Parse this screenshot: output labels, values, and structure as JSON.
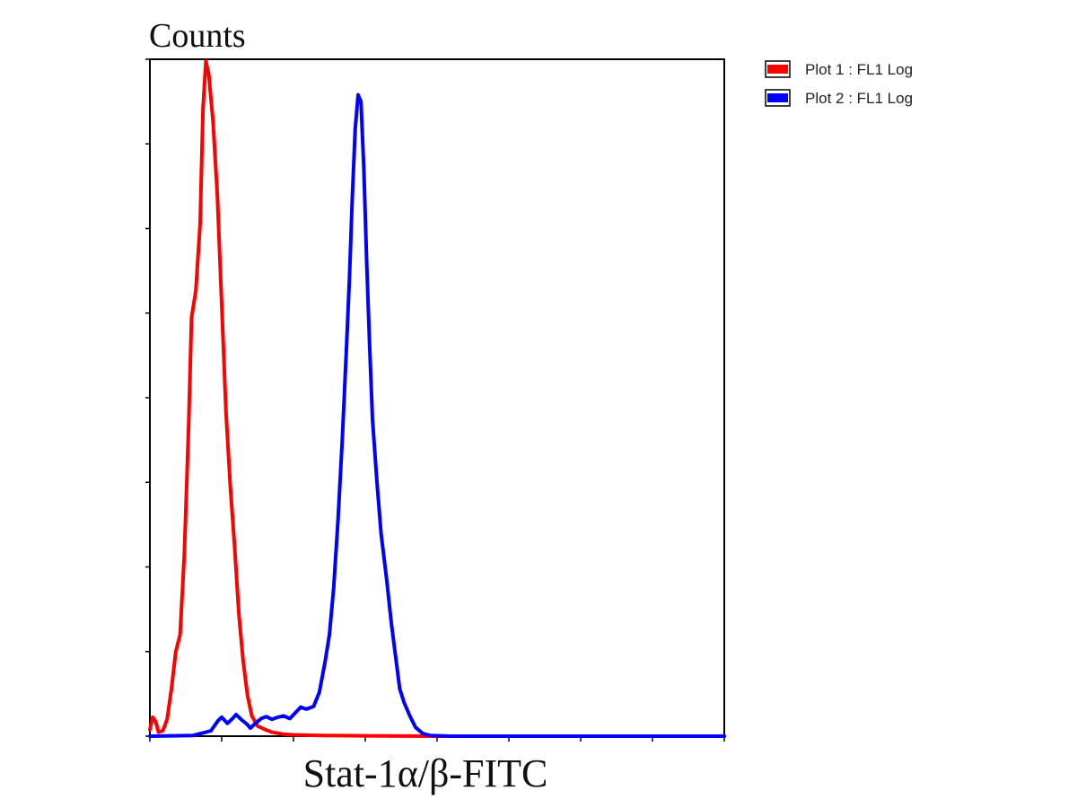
{
  "chart_data": {
    "type": "line",
    "title": "",
    "ylabel": "Counts",
    "xlabel": "Stat-1α/β-FITC",
    "xlim": [
      0,
      800
    ],
    "ylim": [
      0,
      100
    ],
    "x_tick_count": 8,
    "y_tick_count": 8,
    "tick_labels_shown": false,
    "grid": false,
    "legend_placement": "outside-top-right",
    "series": [
      {
        "name": "Plot 1 : FL1 Log",
        "color": "#ff0000",
        "points": [
          [
            0,
            1
          ],
          [
            4,
            2.8
          ],
          [
            8,
            2.2
          ],
          [
            12,
            0.6
          ],
          [
            18,
            0.8
          ],
          [
            24,
            2.5
          ],
          [
            30,
            7
          ],
          [
            36,
            12.5
          ],
          [
            42,
            15
          ],
          [
            48,
            27
          ],
          [
            54,
            46
          ],
          [
            58,
            62
          ],
          [
            64,
            66
          ],
          [
            70,
            76
          ],
          [
            74,
            93
          ],
          [
            78,
            100
          ],
          [
            82,
            98
          ],
          [
            88,
            91
          ],
          [
            94,
            80
          ],
          [
            100,
            64
          ],
          [
            106,
            48
          ],
          [
            112,
            37
          ],
          [
            118,
            28
          ],
          [
            124,
            18
          ],
          [
            130,
            11
          ],
          [
            136,
            6
          ],
          [
            142,
            3
          ],
          [
            150,
            1.5
          ],
          [
            160,
            1
          ],
          [
            170,
            0.6
          ],
          [
            185,
            0.3
          ],
          [
            200,
            0.2
          ],
          [
            240,
            0.1
          ],
          [
            300,
            0.05
          ],
          [
            400,
            0
          ],
          [
            800,
            0
          ]
        ]
      },
      {
        "name": "Plot 2 : FL1 Log",
        "color": "#0000ff",
        "points": [
          [
            0,
            0
          ],
          [
            60,
            0.1
          ],
          [
            75,
            0.5
          ],
          [
            85,
            0.8
          ],
          [
            95,
            2.3
          ],
          [
            100,
            2.8
          ],
          [
            108,
            1.9
          ],
          [
            115,
            2.6
          ],
          [
            120,
            3.2
          ],
          [
            128,
            2.4
          ],
          [
            135,
            1.8
          ],
          [
            140,
            1.2
          ],
          [
            148,
            2.0
          ],
          [
            155,
            2.6
          ],
          [
            162,
            2.9
          ],
          [
            170,
            2.5
          ],
          [
            178,
            2.8
          ],
          [
            186,
            3.0
          ],
          [
            195,
            2.6
          ],
          [
            202,
            3.4
          ],
          [
            210,
            4.3
          ],
          [
            218,
            4.0
          ],
          [
            228,
            4.4
          ],
          [
            236,
            6.5
          ],
          [
            244,
            11
          ],
          [
            250,
            15
          ],
          [
            256,
            22
          ],
          [
            262,
            32
          ],
          [
            268,
            44
          ],
          [
            274,
            58
          ],
          [
            278,
            68
          ],
          [
            282,
            80
          ],
          [
            286,
            90
          ],
          [
            290,
            95
          ],
          [
            294,
            94
          ],
          [
            298,
            84
          ],
          [
            302,
            70
          ],
          [
            306,
            58
          ],
          [
            310,
            47
          ],
          [
            316,
            38
          ],
          [
            322,
            30
          ],
          [
            330,
            23
          ],
          [
            336,
            17
          ],
          [
            342,
            12
          ],
          [
            348,
            7
          ],
          [
            354,
            5
          ],
          [
            362,
            3
          ],
          [
            370,
            1.3
          ],
          [
            380,
            0.4
          ],
          [
            390,
            0.1
          ],
          [
            420,
            0
          ],
          [
            800,
            0
          ]
        ]
      }
    ]
  }
}
